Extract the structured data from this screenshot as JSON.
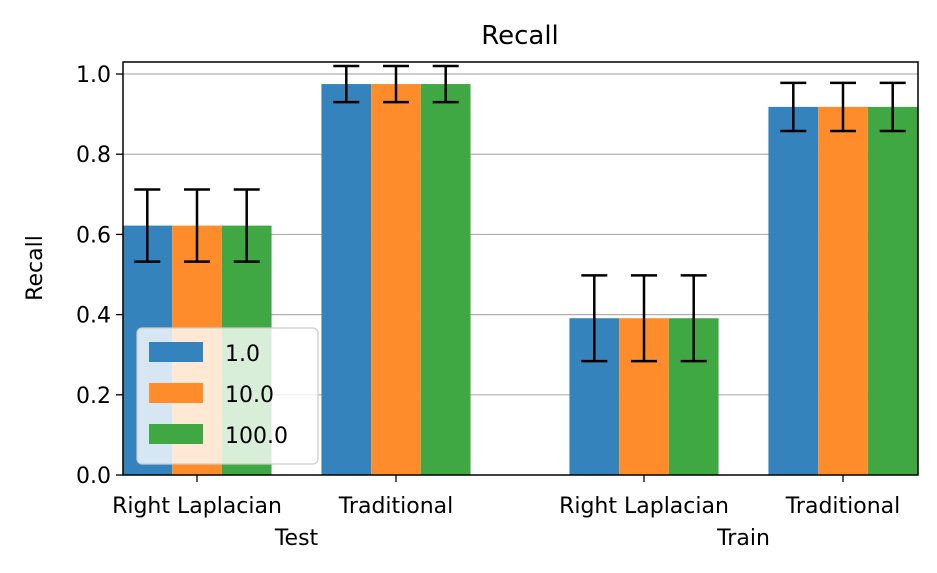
{
  "chart_data": {
    "type": "bar",
    "title": "Recall",
    "ylabel": "Recall",
    "xlabel": "",
    "ylim": [
      0,
      1.03
    ],
    "yticks": [
      0.0,
      0.2,
      0.4,
      0.6,
      0.8,
      1.0
    ],
    "ytick_labels": [
      "0.0",
      "0.2",
      "0.4",
      "0.6",
      "0.8",
      "1.0"
    ],
    "grid": "y",
    "legend_position": "lower-left",
    "groups": [
      "Test",
      "Train"
    ],
    "categories": [
      "Right Laplacian",
      "Traditional",
      "Right Laplacian",
      "Traditional"
    ],
    "category_group": [
      "Test",
      "Test",
      "Train",
      "Train"
    ],
    "series": [
      {
        "name": "1.0",
        "color": "#3583bd",
        "values": [
          0.622,
          0.975,
          0.391,
          0.918
        ],
        "errors": [
          0.09,
          0.045,
          0.107,
          0.06
        ]
      },
      {
        "name": "10.0",
        "color": "#ff8c2a",
        "values": [
          0.622,
          0.975,
          0.391,
          0.918
        ],
        "errors": [
          0.09,
          0.045,
          0.107,
          0.06
        ]
      },
      {
        "name": "100.0",
        "color": "#40a843",
        "values": [
          0.622,
          0.975,
          0.391,
          0.918
        ],
        "errors": [
          0.09,
          0.045,
          0.107,
          0.06
        ]
      }
    ]
  }
}
